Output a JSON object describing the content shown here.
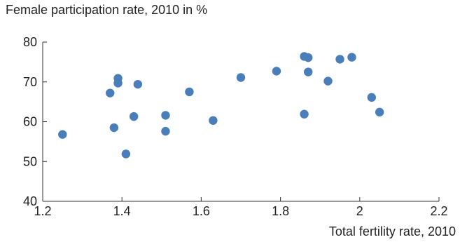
{
  "chart_data": {
    "type": "scatter",
    "title": "",
    "ylabel": "Female participation rate, 2010 in %",
    "xlabel": "Total fertility rate, 2010",
    "xlim": [
      1.2,
      2.2
    ],
    "ylim": [
      40,
      80
    ],
    "xticks": [
      "1.2",
      "1.4",
      "1.6",
      "1.8",
      "2",
      "2.2"
    ],
    "yticks": [
      "40",
      "50",
      "60",
      "70",
      "80"
    ],
    "grid": false,
    "legend": "none",
    "marker_color": "#4a7ebb",
    "points": [
      {
        "x": 1.25,
        "y": 56.8
      },
      {
        "x": 1.37,
        "y": 67.2
      },
      {
        "x": 1.38,
        "y": 58.5
      },
      {
        "x": 1.39,
        "y": 70.9
      },
      {
        "x": 1.39,
        "y": 69.7
      },
      {
        "x": 1.41,
        "y": 51.9
      },
      {
        "x": 1.43,
        "y": 61.3
      },
      {
        "x": 1.44,
        "y": 69.4
      },
      {
        "x": 1.51,
        "y": 61.6
      },
      {
        "x": 1.51,
        "y": 57.6
      },
      {
        "x": 1.57,
        "y": 67.5
      },
      {
        "x": 1.63,
        "y": 60.3
      },
      {
        "x": 1.7,
        "y": 71.1
      },
      {
        "x": 1.79,
        "y": 72.7
      },
      {
        "x": 1.86,
        "y": 76.4
      },
      {
        "x": 1.87,
        "y": 76.1
      },
      {
        "x": 1.87,
        "y": 72.5
      },
      {
        "x": 1.86,
        "y": 61.9
      },
      {
        "x": 1.92,
        "y": 70.2
      },
      {
        "x": 1.95,
        "y": 75.7
      },
      {
        "x": 1.98,
        "y": 76.2
      },
      {
        "x": 2.03,
        "y": 66.1
      },
      {
        "x": 2.05,
        "y": 62.4
      }
    ]
  }
}
